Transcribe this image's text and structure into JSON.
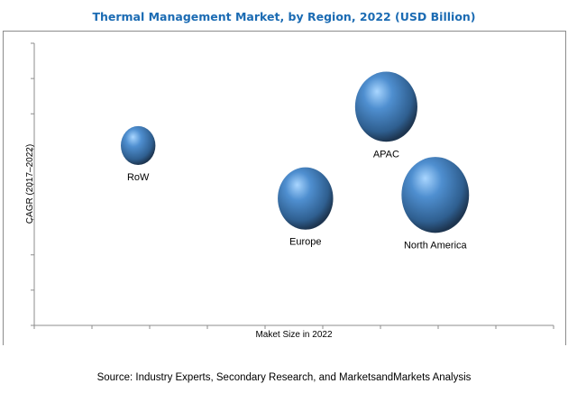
{
  "chart_data": {
    "type": "bubble",
    "title": "Thermal Management Market, by Region, 2022 (USD Billion)",
    "xlabel": "Maket Size in 2022",
    "ylabel": "CAGR (2017–2022)",
    "xlim": [
      0,
      9
    ],
    "ylim": [
      0,
      8
    ],
    "grid": false,
    "tick_labels_shown": false,
    "bubble_color": "#3f7fc0",
    "points": [
      {
        "label": "RoW",
        "x": 1.8,
        "y": 5.1,
        "size": 20
      },
      {
        "label": "APAC",
        "x": 6.1,
        "y": 6.2,
        "size": 36
      },
      {
        "label": "Europe",
        "x": 4.7,
        "y": 3.6,
        "size": 32
      },
      {
        "label": "North America",
        "x": 6.95,
        "y": 3.7,
        "size": 39
      }
    ]
  },
  "source": "Source: Industry Experts, Secondary Research, and MarketsandMarkets Analysis"
}
